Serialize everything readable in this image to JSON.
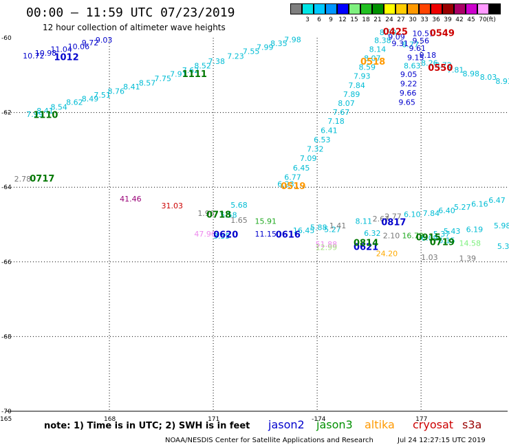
{
  "title": "00:00 – 11:59 UTC 07/23/2019",
  "subtitle": "12 hour collection of altimeter wave heights",
  "legend": {
    "unit": "(ft)",
    "bins": [
      {
        "label": "",
        "color": "#7f7f7f"
      },
      {
        "label": "3",
        "color": "#00e5e5"
      },
      {
        "label": "6",
        "color": "#00c8ff"
      },
      {
        "label": "9",
        "color": "#0096ff"
      },
      {
        "label": "12",
        "color": "#0000ff"
      },
      {
        "label": "15",
        "color": "#7ff07f"
      },
      {
        "label": "18",
        "color": "#22c022"
      },
      {
        "label": "21",
        "color": "#009000"
      },
      {
        "label": "24",
        "color": "#ffff00"
      },
      {
        "label": "27",
        "color": "#ffcc00"
      },
      {
        "label": "30",
        "color": "#ff9900"
      },
      {
        "label": "33",
        "color": "#ff4400"
      },
      {
        "label": "36",
        "color": "#ee0000"
      },
      {
        "label": "39",
        "color": "#990000"
      },
      {
        "label": "42",
        "color": "#aa0066"
      },
      {
        "label": "45",
        "color": "#cc00cc"
      },
      {
        "label": "70",
        "color": "#ff99ff"
      },
      {
        "label": "",
        "color": "#000000"
      }
    ]
  },
  "axes": {
    "lon_labels": [
      "165",
      "168",
      "171",
      "-174",
      "177"
    ],
    "lat_labels": [
      "-60",
      "-62",
      "-64",
      "-66",
      "-68",
      "-70"
    ],
    "lon_range": [
      165,
      179.5
    ],
    "lat_range": [
      -70,
      -60
    ],
    "lon_gridlines": [
      168,
      171,
      174,
      177
    ],
    "lat_gridlines": [
      -62,
      -64,
      -66,
      -68
    ]
  },
  "observations": [
    {
      "lon": 165.5,
      "lat": -60.55,
      "text": "10.72",
      "color": "#0000cc"
    },
    {
      "lon": 165.85,
      "lat": -60.48,
      "text": "10.98",
      "color": "#0000cc"
    },
    {
      "lon": 166.3,
      "lat": -60.38,
      "text": "11.04",
      "color": "#0000cc"
    },
    {
      "lon": 166.8,
      "lat": -60.3,
      "text": "10.06",
      "color": "#0000cc"
    },
    {
      "lon": 167.2,
      "lat": -60.2,
      "text": "9.72",
      "color": "#0000cc"
    },
    {
      "lon": 167.6,
      "lat": -60.13,
      "text": "9.03",
      "color": "#0000cc"
    },
    {
      "lon": 165.6,
      "lat": -62.12,
      "text": "7.99",
      "color": "#00bcd4"
    },
    {
      "lon": 165.9,
      "lat": -62.03,
      "text": "8.41",
      "color": "#00bcd4"
    },
    {
      "lon": 166.3,
      "lat": -61.92,
      "text": "8.54",
      "color": "#00bcd4"
    },
    {
      "lon": 166.75,
      "lat": -61.8,
      "text": "8.62",
      "color": "#00bcd4"
    },
    {
      "lon": 167.2,
      "lat": -61.7,
      "text": "8.49",
      "color": "#00bcd4"
    },
    {
      "lon": 167.55,
      "lat": -61.6,
      "text": "7.51",
      "color": "#00bcd4"
    },
    {
      "lon": 167.95,
      "lat": -61.5,
      "text": "8.76",
      "color": "#00bcd4"
    },
    {
      "lon": 168.4,
      "lat": -61.38,
      "text": "8.41",
      "color": "#00bcd4"
    },
    {
      "lon": 168.85,
      "lat": -61.28,
      "text": "8.57",
      "color": "#00bcd4"
    },
    {
      "lon": 169.3,
      "lat": -61.16,
      "text": "7.75",
      "color": "#00bcd4"
    },
    {
      "lon": 169.75,
      "lat": -61.04,
      "text": "7.91",
      "color": "#00bcd4"
    },
    {
      "lon": 170.1,
      "lat": -60.94,
      "text": "7.62",
      "color": "#00bcd4"
    },
    {
      "lon": 170.45,
      "lat": -60.82,
      "text": "8.52",
      "color": "#00bcd4"
    },
    {
      "lon": 170.85,
      "lat": -60.7,
      "text": "7.38",
      "color": "#00bcd4"
    },
    {
      "lon": 171.4,
      "lat": -60.56,
      "text": "7.23",
      "color": "#00bcd4"
    },
    {
      "lon": 171.85,
      "lat": -60.43,
      "text": "7.55",
      "color": "#00bcd4"
    },
    {
      "lon": 172.25,
      "lat": -60.32,
      "text": "7.99",
      "color": "#00bcd4"
    },
    {
      "lon": 172.65,
      "lat": -60.22,
      "text": "8.35",
      "color": "#00bcd4"
    },
    {
      "lon": 173.05,
      "lat": -60.12,
      "text": "7.98",
      "color": "#00bcd4"
    },
    {
      "lon": 172.85,
      "lat": -63.99,
      "text": "6.23",
      "color": "#00bcd4"
    },
    {
      "lon": 173.05,
      "lat": -63.8,
      "text": "6.77",
      "color": "#00bcd4"
    },
    {
      "lon": 173.3,
      "lat": -63.55,
      "text": "6.45",
      "color": "#00bcd4"
    },
    {
      "lon": 173.5,
      "lat": -63.3,
      "text": "7.09",
      "color": "#00bcd4"
    },
    {
      "lon": 173.7,
      "lat": -63.05,
      "text": "7.32",
      "color": "#00bcd4"
    },
    {
      "lon": 173.9,
      "lat": -62.8,
      "text": "6.53",
      "color": "#00bcd4"
    },
    {
      "lon": 174.1,
      "lat": -62.55,
      "text": "6.41",
      "color": "#00bcd4"
    },
    {
      "lon": 174.3,
      "lat": -62.3,
      "text": "7.18",
      "color": "#00bcd4"
    },
    {
      "lon": 174.45,
      "lat": -62.06,
      "text": "7.67",
      "color": "#00bcd4"
    },
    {
      "lon": 174.6,
      "lat": -61.82,
      "text": "8.07",
      "color": "#00bcd4"
    },
    {
      "lon": 174.75,
      "lat": -61.58,
      "text": "7.89",
      "color": "#00bcd4"
    },
    {
      "lon": 174.9,
      "lat": -61.34,
      "text": "7.84",
      "color": "#00bcd4"
    },
    {
      "lon": 175.05,
      "lat": -61.1,
      "text": "7.93",
      "color": "#00bcd4"
    },
    {
      "lon": 175.2,
      "lat": -60.86,
      "text": "8.59",
      "color": "#00bcd4"
    },
    {
      "lon": 175.35,
      "lat": -60.62,
      "text": "8.07",
      "color": "#00bcd4"
    },
    {
      "lon": 175.5,
      "lat": -60.38,
      "text": "8.14",
      "color": "#00bcd4"
    },
    {
      "lon": 175.65,
      "lat": -60.14,
      "text": "8.38",
      "color": "#00bcd4"
    },
    {
      "lon": 175.8,
      "lat": -59.93,
      "text": "8.50",
      "color": "#00bcd4"
    },
    {
      "lon": 176.45,
      "lat": -60.25,
      "text": "8.77",
      "color": "#00bcd4"
    },
    {
      "lon": 176.15,
      "lat": -60.22,
      "text": "9.31",
      "color": "#0000cc"
    },
    {
      "lon": 176.05,
      "lat": -60.05,
      "text": "9.09",
      "color": "#0000cc"
    },
    {
      "lon": 176.75,
      "lat": -59.95,
      "text": "10.51",
      "color": "#0000cc"
    },
    {
      "lon": 176.75,
      "lat": -60.15,
      "text": "9.56",
      "color": "#0000cc"
    },
    {
      "lon": 176.65,
      "lat": -60.35,
      "text": "9.61",
      "color": "#0000cc"
    },
    {
      "lon": 176.6,
      "lat": -60.6,
      "text": "9.15",
      "color": "#0000cc"
    },
    {
      "lon": 176.5,
      "lat": -60.82,
      "text": "8.63",
      "color": "#00bcd4"
    },
    {
      "lon": 176.4,
      "lat": -61.05,
      "text": "9.05",
      "color": "#0000cc"
    },
    {
      "lon": 176.4,
      "lat": -61.3,
      "text": "9.22",
      "color": "#0000cc"
    },
    {
      "lon": 176.38,
      "lat": -61.55,
      "text": "9.66",
      "color": "#0000cc"
    },
    {
      "lon": 176.35,
      "lat": -61.8,
      "text": "9.65",
      "color": "#0000cc"
    },
    {
      "lon": 176.95,
      "lat": -60.53,
      "text": "9.18",
      "color": "#0000cc"
    },
    {
      "lon": 177.0,
      "lat": -60.75,
      "text": "8.26",
      "color": "#00bcd4"
    },
    {
      "lon": 177.4,
      "lat": -60.8,
      "text": "8.72",
      "color": "#00bcd4"
    },
    {
      "lon": 177.75,
      "lat": -60.93,
      "text": "7.81",
      "color": "#00bcd4"
    },
    {
      "lon": 178.2,
      "lat": -61.03,
      "text": "8.98",
      "color": "#00bcd4"
    },
    {
      "lon": 178.7,
      "lat": -61.12,
      "text": "8.03",
      "color": "#00bcd4"
    },
    {
      "lon": 179.15,
      "lat": -61.23,
      "text": "8.93",
      "color": "#00bcd4"
    },
    {
      "lon": 165.25,
      "lat": -63.85,
      "text": "2.78",
      "color": "#777777"
    },
    {
      "lon": 168.3,
      "lat": -64.38,
      "text": "41.46",
      "color": "#990077"
    },
    {
      "lon": 169.5,
      "lat": -64.57,
      "text": "31.03",
      "color": "#cc0000"
    },
    {
      "lon": 170.55,
      "lat": -64.77,
      "text": "1.96",
      "color": "#777777"
    },
    {
      "lon": 171.5,
      "lat": -64.95,
      "text": "1.65",
      "color": "#777777"
    },
    {
      "lon": 170.45,
      "lat": -65.32,
      "text": "47.96",
      "color": "#ee88ee"
    },
    {
      "lon": 171.0,
      "lat": -65.38,
      "text": "3.55",
      "color": "#00bcd4"
    },
    {
      "lon": 171.2,
      "lat": -64.82,
      "text": "5.58",
      "color": "#00bcd4"
    },
    {
      "lon": 171.5,
      "lat": -64.55,
      "text": "5.68",
      "color": "#00bcd4"
    },
    {
      "lon": 172.2,
      "lat": -65.32,
      "text": "11.15",
      "color": "#0000cc"
    },
    {
      "lon": 172.2,
      "lat": -64.98,
      "text": "15.91",
      "color": "#22aa22"
    },
    {
      "lon": 173.3,
      "lat": -65.23,
      "text": "16.45",
      "color": "#00bcd4"
    },
    {
      "lon": 173.8,
      "lat": -65.15,
      "text": "5.88",
      "color": "#00bcd4"
    },
    {
      "lon": 174.2,
      "lat": -65.2,
      "text": "5.27",
      "color": "#00bcd4"
    },
    {
      "lon": 174.35,
      "lat": -65.1,
      "text": "1.41",
      "color": "#777777"
    },
    {
      "lon": 173.95,
      "lat": -65.6,
      "text": "51.88",
      "color": "#ee88ee"
    },
    {
      "lon": 173.95,
      "lat": -65.68,
      "text": "12.99",
      "color": "#aadd88"
    },
    {
      "lon": 175.1,
      "lat": -64.98,
      "text": "8.11",
      "color": "#00bcd4"
    },
    {
      "lon": 175.6,
      "lat": -64.92,
      "text": "2.67",
      "color": "#777777"
    },
    {
      "lon": 175.95,
      "lat": -64.85,
      "text": "2.77",
      "color": "#777777"
    },
    {
      "lon": 175.35,
      "lat": -65.3,
      "text": "6.32",
      "color": "#00bcd4"
    },
    {
      "lon": 175.9,
      "lat": -65.37,
      "text": "2.10",
      "color": "#777777"
    },
    {
      "lon": 175.7,
      "lat": -65.85,
      "text": "24.20",
      "color": "#ffaa00"
    },
    {
      "lon": 176.5,
      "lat": -64.8,
      "text": "6.10",
      "color": "#00bcd4"
    },
    {
      "lon": 176.45,
      "lat": -65.37,
      "text": "16.73",
      "color": "#22aa22"
    },
    {
      "lon": 177.05,
      "lat": -64.77,
      "text": "7.84",
      "color": "#00bcd4"
    },
    {
      "lon": 177.5,
      "lat": -64.7,
      "text": "6.40",
      "color": "#00bcd4"
    },
    {
      "lon": 177.95,
      "lat": -64.6,
      "text": "5.27",
      "color": "#00bcd4"
    },
    {
      "lon": 178.45,
      "lat": -64.52,
      "text": "6.16",
      "color": "#00bcd4"
    },
    {
      "lon": 178.95,
      "lat": -64.42,
      "text": "6.47",
      "color": "#00bcd4"
    },
    {
      "lon": 177.0,
      "lat": -65.43,
      "text": "6.09",
      "color": "#00bcd4"
    },
    {
      "lon": 177.35,
      "lat": -65.32,
      "text": "5.37",
      "color": "#00bcd4"
    },
    {
      "lon": 177.65,
      "lat": -65.25,
      "text": "5.43",
      "color": "#00bcd4"
    },
    {
      "lon": 178.3,
      "lat": -65.2,
      "text": "6.19",
      "color": "#00bcd4"
    },
    {
      "lon": 179.1,
      "lat": -65.1,
      "text": "5.98",
      "color": "#00bcd4"
    },
    {
      "lon": 177.5,
      "lat": -65.5,
      "text": "6.15",
      "color": "#00bcd4"
    },
    {
      "lon": 178.1,
      "lat": -65.57,
      "text": "14.58",
      "color": "#7ff07f"
    },
    {
      "lon": 179.2,
      "lat": -65.65,
      "text": "5.39",
      "color": "#00bcd4"
    },
    {
      "lon": 177.0,
      "lat": -65.95,
      "text": "1.03",
      "color": "#777777"
    },
    {
      "lon": 178.1,
      "lat": -65.98,
      "text": "1.39",
      "color": "#777777"
    }
  ],
  "passes": [
    {
      "lon": 166.4,
      "lat": -60.6,
      "text": "1012",
      "color": "#0000cc"
    },
    {
      "lon": 165.8,
      "lat": -62.15,
      "text": "1110",
      "color": "#007700"
    },
    {
      "lon": 170.1,
      "lat": -61.05,
      "text": "1111",
      "color": "#007700"
    },
    {
      "lon": 165.7,
      "lat": -63.85,
      "text": "0717",
      "color": "#007700"
    },
    {
      "lon": 170.8,
      "lat": -64.82,
      "text": "0718",
      "color": "#007700"
    },
    {
      "lon": 171.0,
      "lat": -65.35,
      "text": "0620",
      "color": "#0000cc"
    },
    {
      "lon": 172.8,
      "lat": -65.35,
      "text": "0616",
      "color": "#0000cc"
    },
    {
      "lon": 172.95,
      "lat": -64.05,
      "text": "0519",
      "color": "#ff9900"
    },
    {
      "lon": 175.05,
      "lat": -65.68,
      "text": "0621",
      "color": "#0000cc"
    },
    {
      "lon": 175.05,
      "lat": -65.57,
      "text": "0814",
      "color": "#007700"
    },
    {
      "lon": 175.85,
      "lat": -65.02,
      "text": "0817",
      "color": "#0000cc"
    },
    {
      "lon": 175.25,
      "lat": -60.72,
      "text": "0518",
      "color": "#ff9900"
    },
    {
      "lon": 175.9,
      "lat": -59.92,
      "text": "0425",
      "color": "#cc0000"
    },
    {
      "lon": 177.25,
      "lat": -59.95,
      "text": "0549",
      "color": "#cc0000"
    },
    {
      "lon": 177.2,
      "lat": -60.88,
      "text": "0550",
      "color": "#cc0000"
    },
    {
      "lon": 176.85,
      "lat": -65.42,
      "text": "0915",
      "color": "#007700"
    },
    {
      "lon": 177.25,
      "lat": -65.55,
      "text": "0719",
      "color": "#007700"
    }
  ],
  "footer": {
    "note": "note:  1) Time is in UTC;  2) SWH is in feet",
    "satellites": [
      {
        "name": "jason2",
        "color": "#0000cc"
      },
      {
        "name": "jason3",
        "color": "#009000"
      },
      {
        "name": "altika",
        "color": "#ff9900"
      },
      {
        "name": "cryosat",
        "color": "#cc0000"
      },
      {
        "name": "s3a",
        "color": "#990000"
      }
    ],
    "credit": "NOAA/NESDIS Center for Satellite Applications and Research",
    "timestamp": "Jul 24 12:27:15 UTC 2019"
  }
}
